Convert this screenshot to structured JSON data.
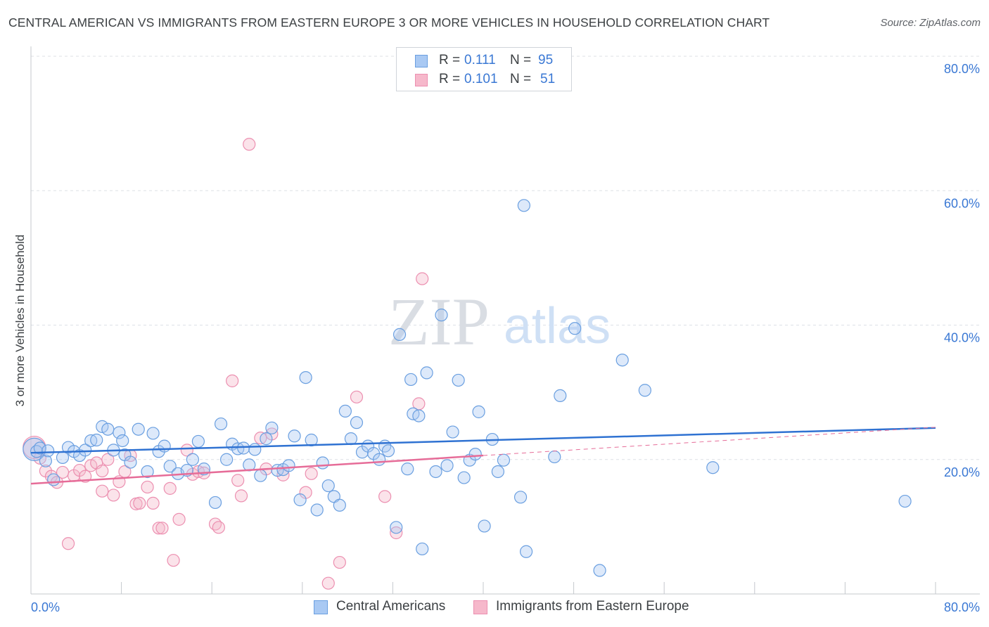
{
  "title": "CENTRAL AMERICAN VS IMMIGRANTS FROM EASTERN EUROPE 3 OR MORE VEHICLES IN HOUSEHOLD CORRELATION CHART",
  "source": "Source: ZipAtlas.com",
  "watermark": {
    "zip": "ZIP",
    "atlas": "atlas"
  },
  "legend_top": [
    {
      "r_label": "R =",
      "r_value": "0.111",
      "n_label": "N =",
      "n_value": "95"
    },
    {
      "r_label": "R =",
      "r_value": "0.101",
      "n_label": "N =",
      "n_value": "51"
    }
  ],
  "legend_bottom": [
    {
      "label": "Central Americans"
    },
    {
      "label": "Immigrants from Eastern Europe"
    }
  ],
  "colors": {
    "blue_fill": "#a9c9f3",
    "blue_stroke": "#6a9fe0",
    "blue_line": "#2f72d2",
    "pink_fill": "#f6b8cb",
    "pink_stroke": "#ec8fb0",
    "pink_line": "#e66c98",
    "tick_text": "#3a78d4",
    "grid": "#dde1e6"
  },
  "chart_data": {
    "type": "scatter",
    "title": "CENTRAL AMERICAN VS IMMIGRANTS FROM EASTERN EUROPE 3 OR MORE VEHICLES IN HOUSEHOLD CORRELATION CHART",
    "xlabel": "",
    "ylabel": "3 or more Vehicles in Household",
    "xlim": [
      0,
      80
    ],
    "ylim": [
      0,
      80
    ],
    "x_tick_labels": [
      "0.0%",
      "80.0%"
    ],
    "y_tick_values": [
      20,
      40,
      60,
      80
    ],
    "y_tick_labels": [
      "20.0%",
      "40.0%",
      "60.0%",
      "80.0%"
    ],
    "grid": true,
    "legend_position": "top-center",
    "series": [
      {
        "name": "Central Americans",
        "color": "#a9c9f3",
        "R": 0.111,
        "N": 95,
        "trend": {
          "x": [
            0,
            80
          ],
          "y": [
            21.0,
            24.7
          ]
        },
        "points": [
          [
            0.3,
            21.5
          ],
          [
            0.5,
            21.2
          ],
          [
            0.8,
            21.7
          ],
          [
            1.3,
            19.8
          ],
          [
            1.5,
            21.3
          ],
          [
            2.0,
            17.0
          ],
          [
            2.8,
            20.3
          ],
          [
            3.3,
            21.8
          ],
          [
            3.8,
            21.2
          ],
          [
            4.3,
            20.6
          ],
          [
            4.8,
            21.4
          ],
          [
            5.3,
            22.8
          ],
          [
            5.8,
            22.9
          ],
          [
            6.3,
            24.9
          ],
          [
            6.8,
            24.5
          ],
          [
            7.3,
            21.4
          ],
          [
            7.8,
            24.0
          ],
          [
            8.3,
            20.7
          ],
          [
            8.8,
            19.6
          ],
          [
            9.5,
            24.5
          ],
          [
            10.3,
            18.2
          ],
          [
            10.8,
            23.9
          ],
          [
            11.3,
            21.2
          ],
          [
            11.8,
            22.0
          ],
          [
            12.3,
            19.0
          ],
          [
            13.0,
            17.9
          ],
          [
            13.8,
            18.4
          ],
          [
            14.3,
            20.0
          ],
          [
            14.8,
            22.7
          ],
          [
            15.3,
            18.6
          ],
          [
            16.3,
            13.6
          ],
          [
            16.8,
            25.3
          ],
          [
            17.3,
            20.0
          ],
          [
            17.8,
            22.3
          ],
          [
            18.3,
            21.6
          ],
          [
            18.8,
            21.7
          ],
          [
            19.3,
            19.2
          ],
          [
            19.8,
            21.5
          ],
          [
            20.3,
            17.6
          ],
          [
            20.8,
            23.1
          ],
          [
            21.3,
            24.7
          ],
          [
            21.8,
            18.4
          ],
          [
            22.3,
            18.5
          ],
          [
            22.8,
            19.1
          ],
          [
            23.3,
            23.5
          ],
          [
            23.8,
            14.0
          ],
          [
            24.3,
            32.2
          ],
          [
            24.8,
            22.9
          ],
          [
            25.3,
            12.5
          ],
          [
            25.8,
            19.5
          ],
          [
            26.3,
            16.1
          ],
          [
            26.8,
            14.5
          ],
          [
            27.3,
            13.2
          ],
          [
            27.8,
            27.2
          ],
          [
            28.3,
            23.1
          ],
          [
            28.8,
            25.5
          ],
          [
            29.3,
            21.1
          ],
          [
            29.8,
            22.0
          ],
          [
            30.3,
            20.9
          ],
          [
            30.8,
            20.0
          ],
          [
            31.3,
            22.0
          ],
          [
            31.6,
            21.3
          ],
          [
            32.3,
            9.9
          ],
          [
            32.6,
            38.6
          ],
          [
            33.3,
            18.6
          ],
          [
            33.6,
            31.9
          ],
          [
            33.8,
            26.8
          ],
          [
            34.3,
            26.5
          ],
          [
            34.6,
            6.7
          ],
          [
            35.0,
            32.9
          ],
          [
            35.8,
            18.2
          ],
          [
            36.3,
            41.5
          ],
          [
            36.8,
            19.1
          ],
          [
            37.3,
            24.1
          ],
          [
            37.8,
            31.8
          ],
          [
            38.3,
            17.3
          ],
          [
            38.8,
            19.9
          ],
          [
            39.3,
            20.8
          ],
          [
            39.6,
            27.1
          ],
          [
            40.1,
            10.1
          ],
          [
            40.8,
            23.0
          ],
          [
            41.3,
            18.2
          ],
          [
            41.8,
            19.9
          ],
          [
            43.3,
            14.4
          ],
          [
            43.6,
            57.8
          ],
          [
            43.8,
            6.3
          ],
          [
            46.3,
            20.4
          ],
          [
            46.8,
            29.5
          ],
          [
            50.3,
            3.5
          ],
          [
            52.3,
            34.8
          ],
          [
            54.3,
            30.3
          ],
          [
            60.3,
            18.8
          ],
          [
            77.3,
            13.8
          ],
          [
            48.1,
            39.5
          ],
          [
            8.1,
            22.8
          ]
        ]
      },
      {
        "name": "Immigrants from Eastern Europe",
        "color": "#f6b8cb",
        "R": 0.101,
        "N": 51,
        "trend": {
          "x": [
            0,
            40
          ],
          "y": [
            16.4,
            20.6
          ]
        },
        "trend_dashed": {
          "x": [
            40,
            80
          ],
          "y": [
            20.6,
            24.8
          ]
        },
        "points": [
          [
            0.3,
            21.8
          ],
          [
            0.8,
            20.2
          ],
          [
            1.3,
            18.3
          ],
          [
            1.8,
            17.5
          ],
          [
            2.3,
            16.6
          ],
          [
            2.8,
            18.1
          ],
          [
            3.3,
            7.5
          ],
          [
            3.8,
            17.6
          ],
          [
            4.3,
            18.4
          ],
          [
            4.8,
            17.5
          ],
          [
            5.3,
            19.1
          ],
          [
            5.8,
            19.5
          ],
          [
            6.3,
            18.3
          ],
          [
            6.3,
            15.3
          ],
          [
            6.8,
            20.0
          ],
          [
            7.3,
            14.7
          ],
          [
            7.8,
            16.7
          ],
          [
            8.3,
            18.2
          ],
          [
            8.8,
            20.6
          ],
          [
            9.3,
            13.4
          ],
          [
            9.6,
            13.5
          ],
          [
            10.3,
            15.9
          ],
          [
            10.8,
            13.5
          ],
          [
            11.3,
            9.8
          ],
          [
            11.6,
            9.8
          ],
          [
            12.3,
            15.7
          ],
          [
            12.6,
            5.0
          ],
          [
            13.1,
            11.1
          ],
          [
            13.8,
            21.4
          ],
          [
            14.3,
            17.8
          ],
          [
            14.8,
            18.2
          ],
          [
            15.3,
            18.0
          ],
          [
            16.3,
            10.4
          ],
          [
            16.6,
            9.9
          ],
          [
            17.8,
            31.7
          ],
          [
            18.3,
            16.9
          ],
          [
            18.6,
            14.6
          ],
          [
            19.3,
            66.9
          ],
          [
            20.3,
            23.2
          ],
          [
            20.8,
            18.6
          ],
          [
            21.3,
            23.8
          ],
          [
            22.3,
            17.7
          ],
          [
            24.3,
            15.1
          ],
          [
            24.8,
            17.9
          ],
          [
            26.3,
            1.6
          ],
          [
            27.3,
            4.7
          ],
          [
            28.8,
            29.3
          ],
          [
            31.3,
            14.5
          ],
          [
            32.3,
            9.1
          ],
          [
            34.3,
            28.3
          ],
          [
            34.6,
            46.9
          ]
        ]
      }
    ]
  }
}
